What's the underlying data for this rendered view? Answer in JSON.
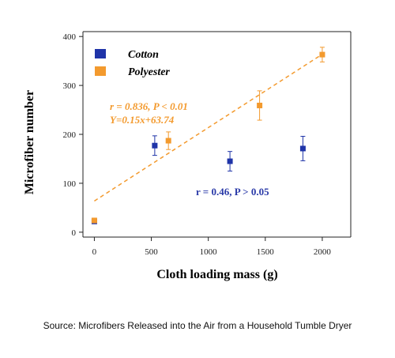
{
  "chart_data": {
    "type": "scatter",
    "xlabel": "Cloth loading mass (g)",
    "ylabel": "Microfiber number",
    "xlim": [
      -100,
      2250
    ],
    "ylim": [
      -10,
      410
    ],
    "xticks": [
      0,
      500,
      1000,
      1500,
      2000
    ],
    "yticks": [
      0,
      100,
      200,
      300,
      400
    ],
    "legend_position": "top-left",
    "series": [
      {
        "name": "Cotton",
        "color": "#1f34a8",
        "points": [
          {
            "x": 0,
            "y": 22,
            "err": 0
          },
          {
            "x": 530,
            "y": 177,
            "err": 20
          },
          {
            "x": 1190,
            "y": 145,
            "err": 20
          },
          {
            "x": 1830,
            "y": 171,
            "err": 25
          }
        ],
        "annotation": "r = 0.46, P > 0.05"
      },
      {
        "name": "Polyester",
        "color": "#f39a2e",
        "points": [
          {
            "x": 0,
            "y": 24,
            "err": 0
          },
          {
            "x": 650,
            "y": 187,
            "err": 18
          },
          {
            "x": 1450,
            "y": 259,
            "err": 30
          },
          {
            "x": 2000,
            "y": 363,
            "err": 15
          }
        ],
        "fit": {
          "slope": 0.15,
          "intercept": 63.74,
          "x_range": [
            0,
            2000
          ]
        },
        "annotation_lines": [
          "r = 0.836, P < 0.01",
          "Y=0.15x+63.74"
        ]
      }
    ]
  },
  "source": "Source: Microfibers Released into the Air from a Household Tumble Dryer"
}
